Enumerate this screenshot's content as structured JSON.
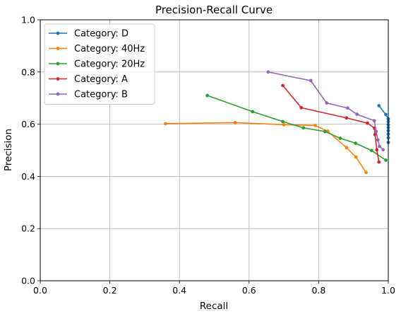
{
  "chart_data": {
    "type": "line",
    "title": "Precision-Recall Curve",
    "xlabel": "Recall",
    "ylabel": "Precision",
    "xlim": [
      0.0,
      1.0
    ],
    "ylim": [
      0.0,
      1.0
    ],
    "xticks": [
      "0.0",
      "0.2",
      "0.4",
      "0.6",
      "0.8",
      "1.0"
    ],
    "yticks": [
      "0.0",
      "0.2",
      "0.4",
      "0.6",
      "0.8",
      "1.0"
    ],
    "grid": true,
    "legend_position": "top-left",
    "series": [
      {
        "name": "Category: D",
        "color": "#1f77b4",
        "x": [
          0.973,
          0.993,
          1.0,
          1.0,
          1.0,
          1.0,
          1.0,
          1.0,
          1.0,
          1.0
        ],
        "y": [
          0.671,
          0.637,
          0.62,
          0.61,
          0.598,
          0.587,
          0.575,
          0.562,
          0.548,
          0.53
        ]
      },
      {
        "name": "Category: 40Hz",
        "color": "#ff7f0e",
        "x": [
          0.36,
          0.56,
          0.7,
          0.79,
          0.826,
          0.88,
          0.907,
          0.936
        ],
        "y": [
          0.602,
          0.606,
          0.598,
          0.595,
          0.573,
          0.51,
          0.474,
          0.415
        ]
      },
      {
        "name": "Category: 20Hz",
        "color": "#2ca02c",
        "x": [
          0.48,
          0.61,
          0.697,
          0.756,
          0.818,
          0.862,
          0.906,
          0.952,
          0.993
        ],
        "y": [
          0.71,
          0.648,
          0.61,
          0.586,
          0.572,
          0.546,
          0.527,
          0.499,
          0.462
        ]
      },
      {
        "name": "Category: A",
        "color": "#d62728",
        "x": [
          0.697,
          0.75,
          0.88,
          0.94,
          0.96,
          0.962,
          0.967,
          0.973
        ],
        "y": [
          0.748,
          0.663,
          0.624,
          0.604,
          0.585,
          0.56,
          0.502,
          0.455
        ]
      },
      {
        "name": "Category: B",
        "color": "#9467bd",
        "x": [
          0.655,
          0.777,
          0.823,
          0.883,
          0.91,
          0.96,
          0.965,
          0.97,
          0.975,
          0.985
        ],
        "y": [
          0.8,
          0.767,
          0.681,
          0.662,
          0.638,
          0.613,
          0.572,
          0.54,
          0.515,
          0.502
        ]
      }
    ]
  }
}
